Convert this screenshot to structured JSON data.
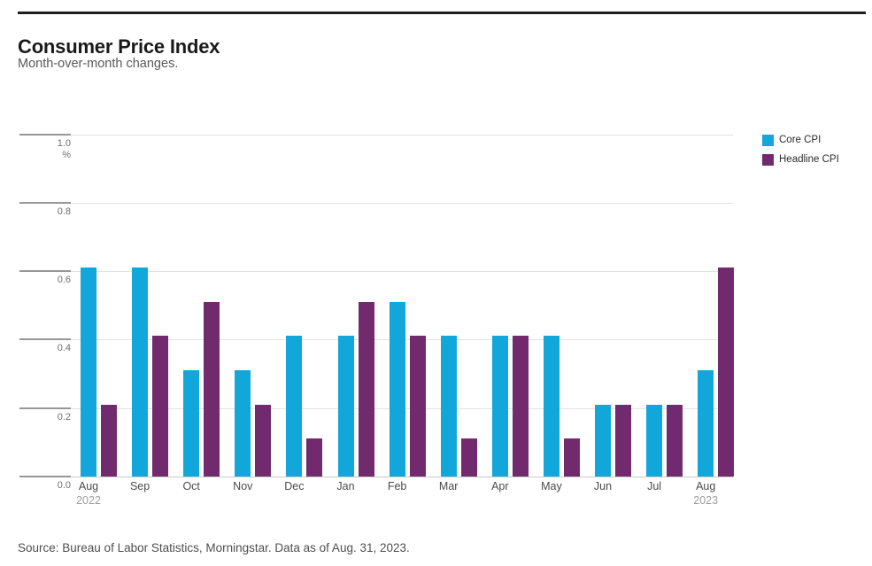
{
  "header": {
    "title": "Consumer Price Index",
    "subtitle": "Month-over-month changes."
  },
  "legend": {
    "items": [
      {
        "label": "Core CPI",
        "color": "#12a7da"
      },
      {
        "label": "Headline CPI",
        "color": "#722a6f"
      }
    ]
  },
  "footer": {
    "source": "Source: Bureau of Labor Statistics, Morningstar. Data as of Aug. 31, 2023."
  },
  "chart_data": {
    "type": "bar",
    "title": "Consumer Price Index",
    "subtitle": "Month-over-month changes.",
    "categories": [
      "Aug",
      "Sep",
      "Oct",
      "Nov",
      "Dec",
      "Jan",
      "Feb",
      "Mar",
      "Apr",
      "May",
      "Jun",
      "Jul",
      "Aug"
    ],
    "category_year_labels": [
      {
        "index": 0,
        "year": "2022"
      },
      {
        "index": 12,
        "year": "2023"
      }
    ],
    "series": [
      {
        "name": "Core CPI",
        "color": "#12a7da",
        "values": [
          0.6,
          0.6,
          0.3,
          0.3,
          0.4,
          0.4,
          0.5,
          0.4,
          0.4,
          0.4,
          0.2,
          0.2,
          0.3
        ]
      },
      {
        "name": "Headline CPI",
        "color": "#722a6f",
        "values": [
          0.2,
          0.4,
          0.5,
          0.2,
          0.1,
          0.5,
          0.4,
          0.1,
          0.4,
          0.1,
          0.2,
          0.2,
          0.6
        ]
      }
    ],
    "unit_label": "%",
    "yticks": [
      0.0,
      0.2,
      0.4,
      0.6,
      0.8,
      1.0
    ],
    "ylim": [
      0.0,
      1.0
    ],
    "grid": true,
    "legend_position": "top-right"
  }
}
